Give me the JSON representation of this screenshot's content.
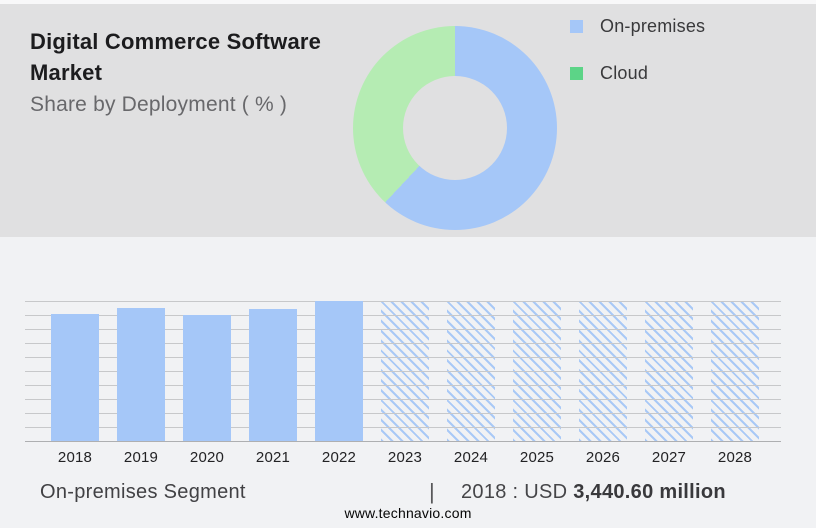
{
  "header": {
    "title_line1": "Digital Commerce Software",
    "title_line2": "Market",
    "subtitle": "Share by Deployment ( % )"
  },
  "legend": {
    "items": [
      {
        "label": "On-premises",
        "swatch_color": "#a5c7f8"
      },
      {
        "label": "Cloud",
        "swatch_color": "#5cd487"
      }
    ]
  },
  "colors": {
    "top_background": "#e0e0e1",
    "bottom_background": "#f1f2f4",
    "bar_blue": "#a5c7f8",
    "donut_green": "#b5ecb3",
    "legend_green": "#5cd487",
    "hatch_blue": "#a9c9f6",
    "gridline": "#c7c8ca"
  },
  "chart_data": [
    {
      "type": "pie",
      "title": "Share by Deployment ( % )",
      "labels": [
        "On-premises",
        "Cloud"
      ],
      "values": [
        62,
        38
      ],
      "unit": "% (estimated from arc angles)",
      "colors": [
        "#a5c7f8",
        "#b5ecb3"
      ],
      "donut_hole_ratio": 0.51,
      "start_angle_deg": 0,
      "legend_position": "right"
    },
    {
      "type": "bar",
      "title": "On-premises Segment market size by year",
      "categories": [
        "2018",
        "2019",
        "2020",
        "2021",
        "2022",
        "2023",
        "2024",
        "2025",
        "2026",
        "2027",
        "2028"
      ],
      "series": [
        {
          "name": "On-premises market size (USD million)",
          "values": [
            3440.6,
            3605,
            3415,
            3575,
            3795,
            3795,
            3795,
            3795,
            3795,
            3795,
            3795
          ],
          "bar_rel_heights": [
            0.907,
            0.95,
            0.9,
            0.943,
            1,
            1,
            1,
            1,
            1,
            1,
            1
          ],
          "hatched_from_index": 5
        }
      ],
      "bar_color": "#a5c7f8",
      "hatch_color": "#a9c9f6",
      "gridline_count": 11,
      "grid": true,
      "xlabel": "",
      "ylabel": "",
      "labeled_value": "2018 : USD 3,440.60 million",
      "note": "Only the 2018 value is labeled in the image; 2019-2028 values are estimated from bar heights. 2023-2028 bars are hatched forecast bars of equal full height."
    }
  ],
  "footer": {
    "segment_label": "On-premises Segment",
    "separator": "|",
    "value_prefix": "2018 : USD",
    "value_bold": "3,440.60 million",
    "website": "www.technavio.com"
  }
}
